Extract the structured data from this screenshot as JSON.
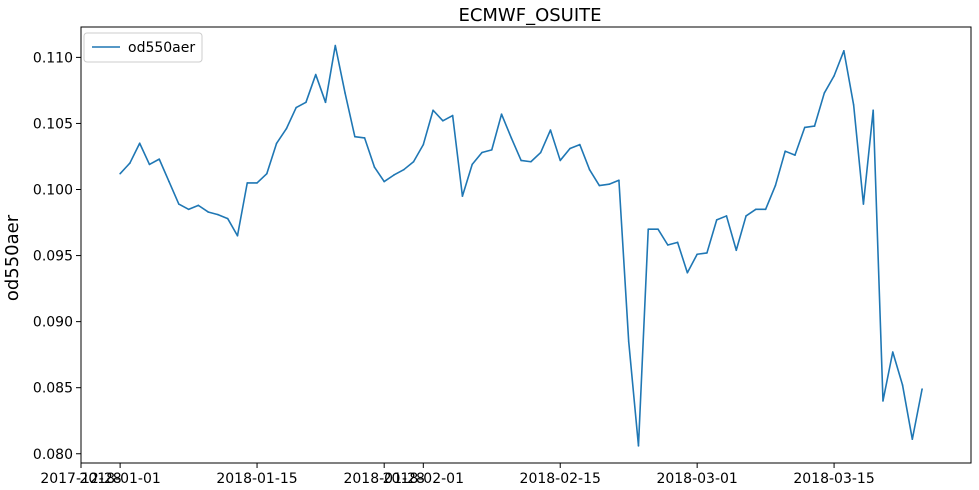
{
  "chart_data": {
    "type": "line",
    "title": "ECMWF_OSUITE",
    "xlabel": "",
    "ylabel": "od550aer",
    "ylim": [
      0.0793,
      0.1123
    ],
    "xlim": [
      "2017-12-28",
      "2018-03-29"
    ],
    "y_ticks": [
      0.08,
      0.085,
      0.09,
      0.095,
      0.1,
      0.105,
      0.11
    ],
    "y_tick_labels": [
      "0.080",
      "0.085",
      "0.090",
      "0.095",
      "0.100",
      "0.105",
      "0.110"
    ],
    "x_ticks": [
      {
        "date": "2017-12-28",
        "label": "2017-12-28"
      },
      {
        "date": "2018-01-01",
        "label": "2018-01-01"
      },
      {
        "date": "2018-01-15",
        "label": "2018-01-15"
      },
      {
        "date": "2018-01-28",
        "label": "2018-01-28"
      },
      {
        "date": "2018-02-01",
        "label": "2018-02-01"
      },
      {
        "date": "2018-02-15",
        "label": "2018-02-15"
      },
      {
        "date": "2018-03-01",
        "label": "2018-03-01"
      },
      {
        "date": "2018-03-15",
        "label": "2018-03-15"
      }
    ],
    "grid": false,
    "legend": {
      "position": "top-left"
    },
    "series": [
      {
        "name": "od550aer",
        "color": "#1f77b4",
        "points": [
          [
            "2018-01-01",
            0.1012
          ],
          [
            "2018-01-02",
            0.102
          ],
          [
            "2018-01-03",
            0.1035
          ],
          [
            "2018-01-04",
            0.1019
          ],
          [
            "2018-01-05",
            0.1023
          ],
          [
            "2018-01-06",
            0.1006
          ],
          [
            "2018-01-07",
            0.0989
          ],
          [
            "2018-01-08",
            0.0985
          ],
          [
            "2018-01-09",
            0.0988
          ],
          [
            "2018-01-10",
            0.0983
          ],
          [
            "2018-01-11",
            0.0981
          ],
          [
            "2018-01-12",
            0.0978
          ],
          [
            "2018-01-13",
            0.0965
          ],
          [
            "2018-01-14",
            0.1005
          ],
          [
            "2018-01-15",
            0.1005
          ],
          [
            "2018-01-16",
            0.1012
          ],
          [
            "2018-01-17",
            0.1035
          ],
          [
            "2018-01-18",
            0.1046
          ],
          [
            "2018-01-19",
            0.1062
          ],
          [
            "2018-01-20",
            0.1066
          ],
          [
            "2018-01-21",
            0.1087
          ],
          [
            "2018-01-22",
            0.1066
          ],
          [
            "2018-01-23",
            0.1109
          ],
          [
            "2018-01-24",
            0.1073
          ],
          [
            "2018-01-25",
            0.104
          ],
          [
            "2018-01-26",
            0.1039
          ],
          [
            "2018-01-27",
            0.1017
          ],
          [
            "2018-01-28",
            0.1006
          ],
          [
            "2018-01-29",
            0.1011
          ],
          [
            "2018-01-30",
            0.1015
          ],
          [
            "2018-01-31",
            0.1021
          ],
          [
            "2018-02-01",
            0.1034
          ],
          [
            "2018-02-02",
            0.106
          ],
          [
            "2018-02-03",
            0.1052
          ],
          [
            "2018-02-04",
            0.1056
          ],
          [
            "2018-02-05",
            0.0995
          ],
          [
            "2018-02-06",
            0.1019
          ],
          [
            "2018-02-07",
            0.1028
          ],
          [
            "2018-02-08",
            0.103
          ],
          [
            "2018-02-09",
            0.1057
          ],
          [
            "2018-02-10",
            0.1039
          ],
          [
            "2018-02-11",
            0.1022
          ],
          [
            "2018-02-12",
            0.1021
          ],
          [
            "2018-02-13",
            0.1028
          ],
          [
            "2018-02-14",
            0.1045
          ],
          [
            "2018-02-15",
            0.1022
          ],
          [
            "2018-02-16",
            0.1031
          ],
          [
            "2018-02-17",
            0.1034
          ],
          [
            "2018-02-18",
            0.1015
          ],
          [
            "2018-02-19",
            0.1003
          ],
          [
            "2018-02-20",
            0.1004
          ],
          [
            "2018-02-21",
            0.1007
          ],
          [
            "2018-02-22",
            0.0885
          ],
          [
            "2018-02-23",
            0.0806
          ],
          [
            "2018-02-24",
            0.097
          ],
          [
            "2018-02-25",
            0.097
          ],
          [
            "2018-02-26",
            0.0958
          ],
          [
            "2018-02-27",
            0.096
          ],
          [
            "2018-02-28",
            0.0937
          ],
          [
            "2018-03-01",
            0.0951
          ],
          [
            "2018-03-02",
            0.0952
          ],
          [
            "2018-03-03",
            0.0977
          ],
          [
            "2018-03-04",
            0.098
          ],
          [
            "2018-03-05",
            0.0954
          ],
          [
            "2018-03-06",
            0.098
          ],
          [
            "2018-03-07",
            0.0985
          ],
          [
            "2018-03-08",
            0.0985
          ],
          [
            "2018-03-09",
            0.1003
          ],
          [
            "2018-03-10",
            0.1029
          ],
          [
            "2018-03-11",
            0.1026
          ],
          [
            "2018-03-12",
            0.1047
          ],
          [
            "2018-03-13",
            0.1048
          ],
          [
            "2018-03-14",
            0.1073
          ],
          [
            "2018-03-15",
            0.1086
          ],
          [
            "2018-03-16",
            0.1105
          ],
          [
            "2018-03-17",
            0.1064
          ],
          [
            "2018-03-18",
            0.0989
          ],
          [
            "2018-03-19",
            0.106
          ],
          [
            "2018-03-20",
            0.084
          ],
          [
            "2018-03-21",
            0.0877
          ],
          [
            "2018-03-22",
            0.0852
          ],
          [
            "2018-03-23",
            0.0811
          ],
          [
            "2018-03-24",
            0.0849
          ]
        ]
      }
    ]
  }
}
